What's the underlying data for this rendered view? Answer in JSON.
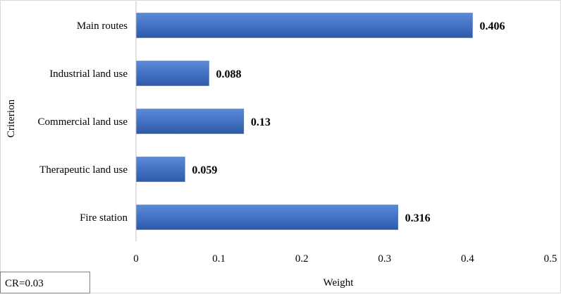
{
  "chart_data": {
    "type": "bar",
    "orientation": "horizontal",
    "categories": [
      "Main routes",
      "Industrial land use",
      "Commercial land use",
      "Therapeutic land use",
      "Fire station"
    ],
    "values": [
      0.406,
      0.088,
      0.13,
      0.059,
      0.316
    ],
    "data_labels": [
      "0.406",
      "0.088",
      "0.13",
      "0.059",
      "0.316"
    ],
    "xlabel": "Weight",
    "ylabel": "Criterion",
    "xlim": [
      0,
      0.5
    ],
    "xticks": [
      0,
      0.1,
      0.2,
      0.3,
      0.4,
      0.5
    ],
    "xtick_labels": [
      "0",
      "0.1",
      "0.2",
      "0.3",
      "0.4",
      "0.5"
    ],
    "grid": false,
    "legend": "none",
    "bar_color": "#4472C4",
    "annotation": "CR=0.03"
  }
}
